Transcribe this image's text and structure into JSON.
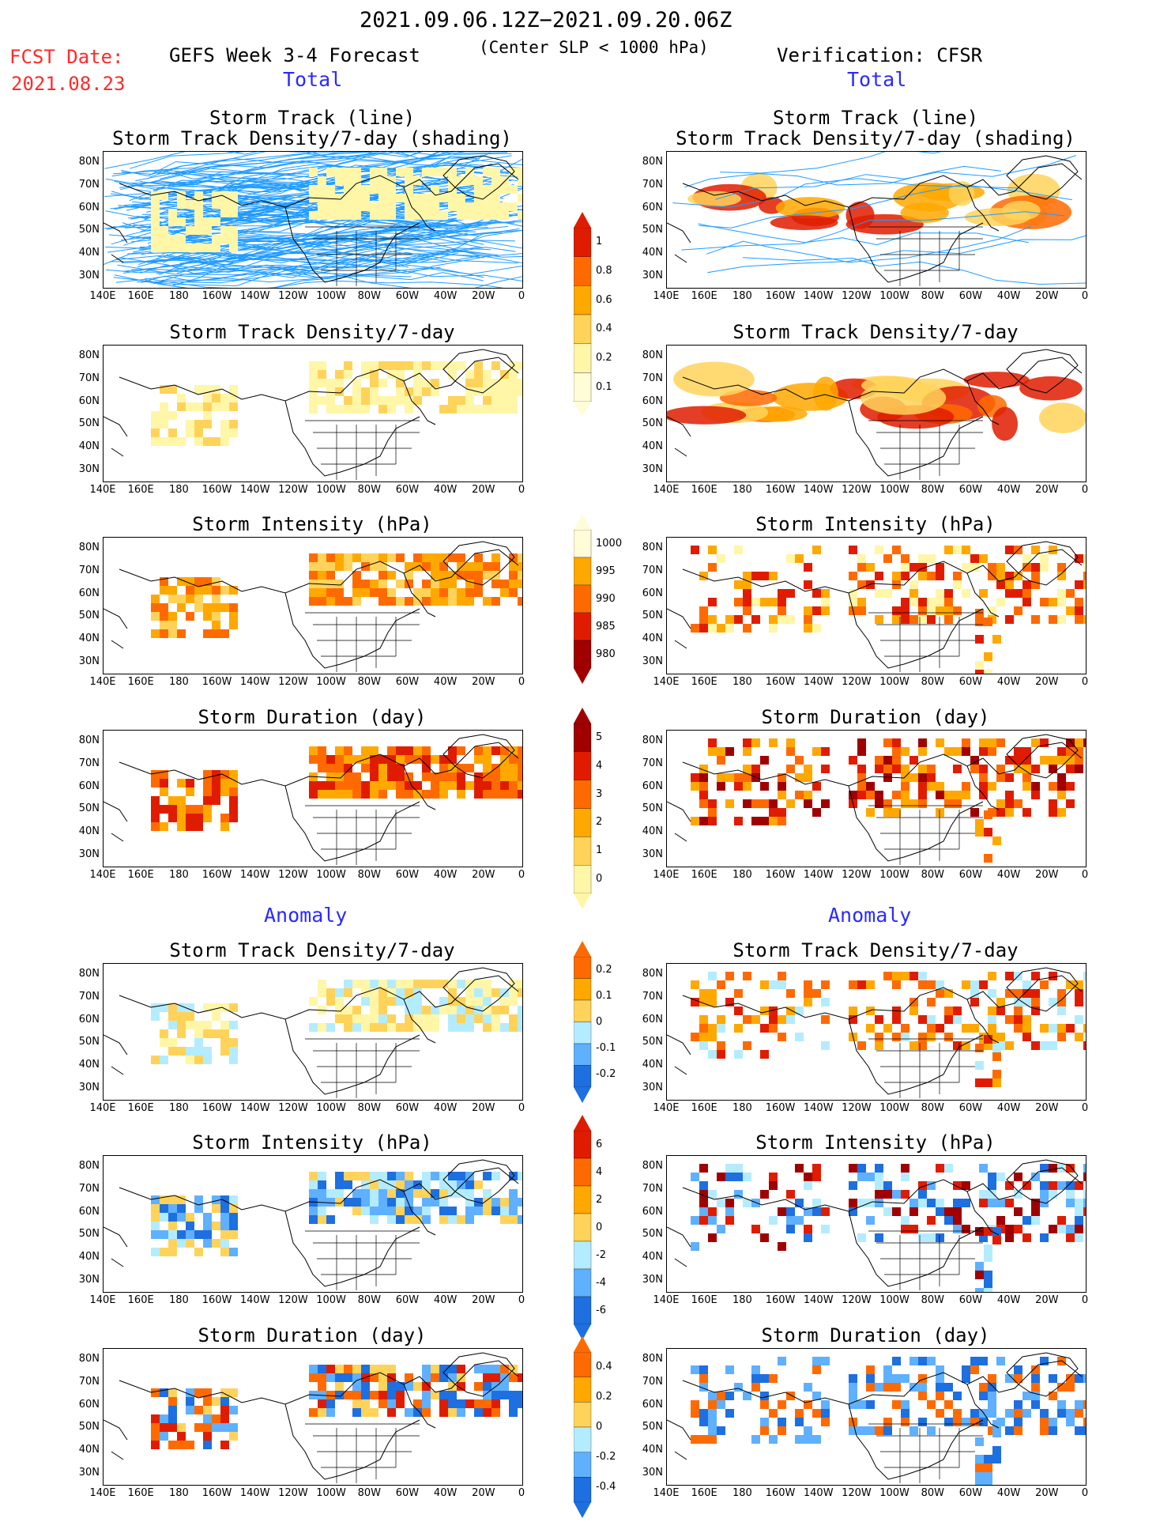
{
  "header": {
    "date_range": "2021.09.06.12Z−2021.09.20.06Z",
    "forecast_title": "GEFS Week 3-4 Forecast",
    "slp_note": "(Center SLP < 1000 hPa)",
    "verification": "Verification: CFSR",
    "fcst_label": "FCST Date:",
    "fcst_date": "2021.08.23"
  },
  "sections": {
    "total_label": "Total",
    "anomaly_label": "Anomaly"
  },
  "panel_titles": {
    "track_line": "Storm Track (line)",
    "track_density_shading": "Storm Track Density/7-day (shading)",
    "track_density": "Storm Track Density/7-day",
    "intensity": "Storm Intensity (hPa)",
    "duration": "Storm Duration (day)"
  },
  "axes": {
    "lat_labels": [
      "80N",
      "70N",
      "60N",
      "50N",
      "40N",
      "30N"
    ],
    "lon_labels": [
      "140E",
      "160E",
      "180",
      "160W",
      "140W",
      "120W",
      "100W",
      "80W",
      "60W",
      "40W",
      "20W",
      "0"
    ]
  },
  "colorbars": {
    "density_total": [
      "1",
      "0.8",
      "0.6",
      "0.4",
      "0.2",
      "0.1"
    ],
    "intensity_total": [
      "1000",
      "995",
      "990",
      "985",
      "980"
    ],
    "duration_total": [
      "5",
      "4",
      "3",
      "2",
      "1",
      "0"
    ],
    "density_anom": [
      "0.2",
      "0.1",
      "0",
      "-0.1",
      "-0.2"
    ],
    "intensity_anom": [
      "6",
      "4",
      "2",
      "0",
      "-2",
      "-4",
      "-6"
    ],
    "duration_anom": [
      "0.4",
      "0.2",
      "0",
      "-0.2",
      "-0.4"
    ]
  },
  "colors": {
    "track_line": "#1e9bff",
    "seq_pale": "#fff6a8",
    "seq_yellow": "#ffd35a",
    "seq_orange": "#ffa800",
    "seq_dorange": "#ff6a00",
    "seq_red": "#e01c00",
    "seq_dred": "#a00000",
    "div_lblue": "#b4ecff",
    "div_blue": "#5fb0ff",
    "div_dblue": "#1e6fe0"
  }
}
